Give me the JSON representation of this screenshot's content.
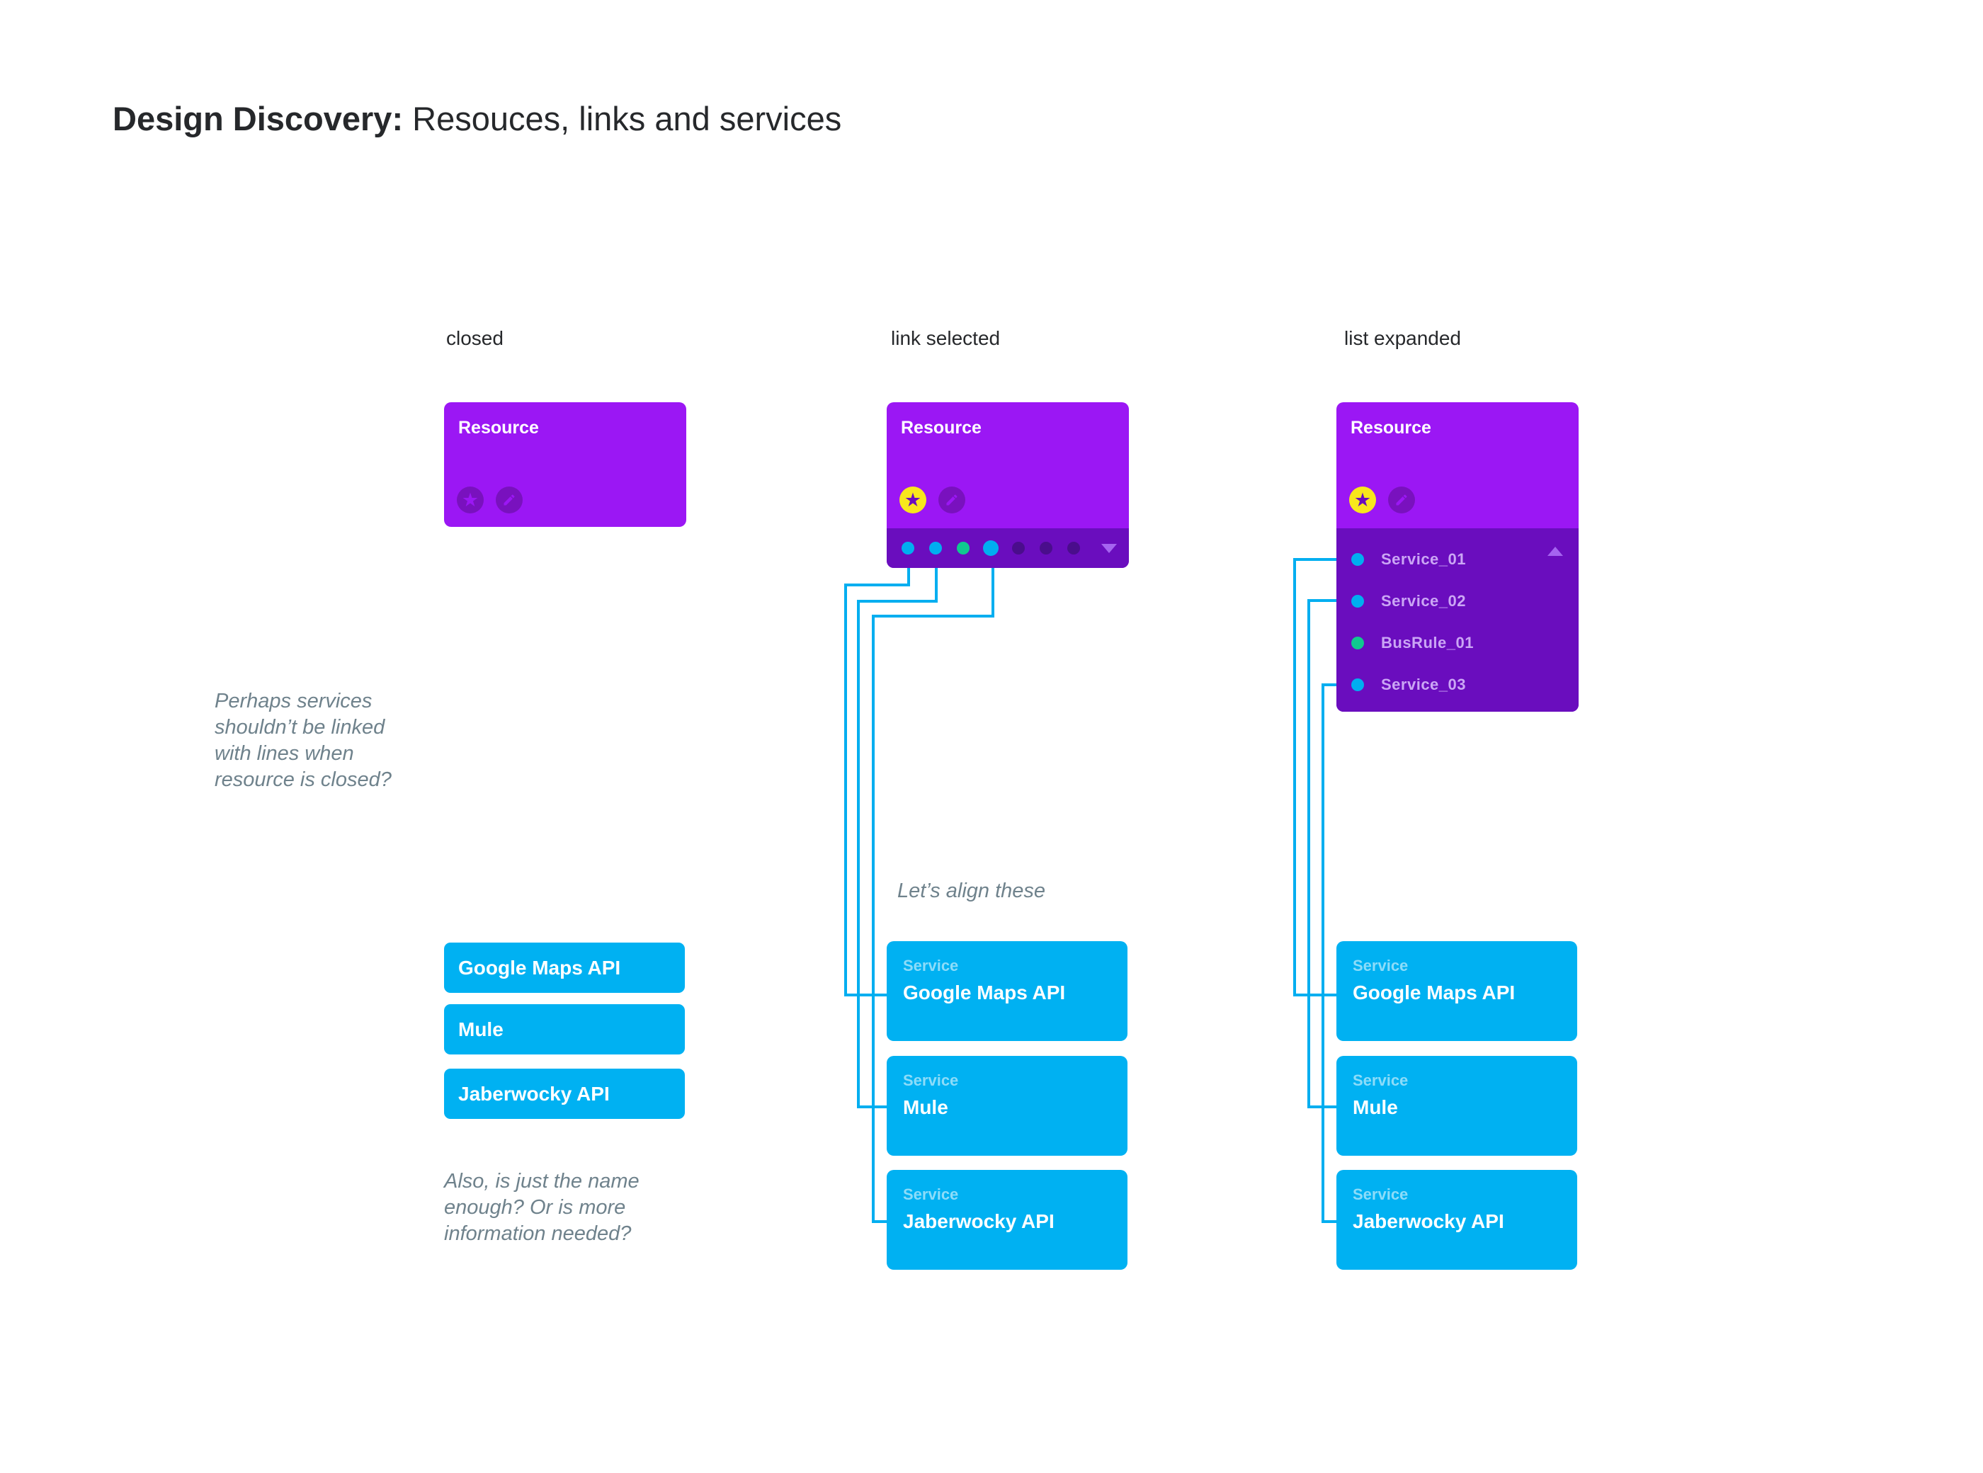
{
  "title": {
    "bold": "Design Discovery:",
    "regular": "Resouces, links and services"
  },
  "column_labels": [
    "closed",
    "link selected",
    "list expanded"
  ],
  "resource_card": {
    "title": "Resource"
  },
  "icons": {
    "favorite_glyph": "★",
    "favorite": "star-icon",
    "edit": "pencil-icon",
    "expand": "chevron-down-icon",
    "collapse": "chevron-up-icon"
  },
  "link_dots": [
    "cyan",
    "cyan",
    "green",
    "cyan selected",
    "dark",
    "dark",
    "dark"
  ],
  "expanded_list": {
    "items": [
      {
        "name": "Service_01",
        "color": "cyan"
      },
      {
        "name": "Service_02",
        "color": "cyan"
      },
      {
        "name": "BusRule_01",
        "color": "green"
      },
      {
        "name": "Service_03",
        "color": "cyan"
      }
    ]
  },
  "simple_service_cards": [
    "Google Maps API",
    "Mule",
    "Jaberwocky API"
  ],
  "service_card_kicker": "Service",
  "service_card_names": [
    "Google Maps API",
    "Mule",
    "Jaberwocky API"
  ],
  "annotations": {
    "closed_note": "Perhaps services\nshouldn’t be linked\nwith lines when\nresource is closed?",
    "align_note": "Let’s align these",
    "name_note": "Also, is just the name\nenough? Or is more\ninformation needed?"
  },
  "colors": {
    "purple": "#9B17F4",
    "purple-dark": "#6A0DBE",
    "dot-inactive": "#4A0D8C",
    "cyan": "#00AEF0",
    "cyan-card": "#00B1F2",
    "green": "#10C98F",
    "yellow": "#F8E71C",
    "arrow-light": "#A564F0",
    "list-text": "#CBA6F5",
    "text-dark": "#26282B",
    "annotation": "#6F828C"
  }
}
